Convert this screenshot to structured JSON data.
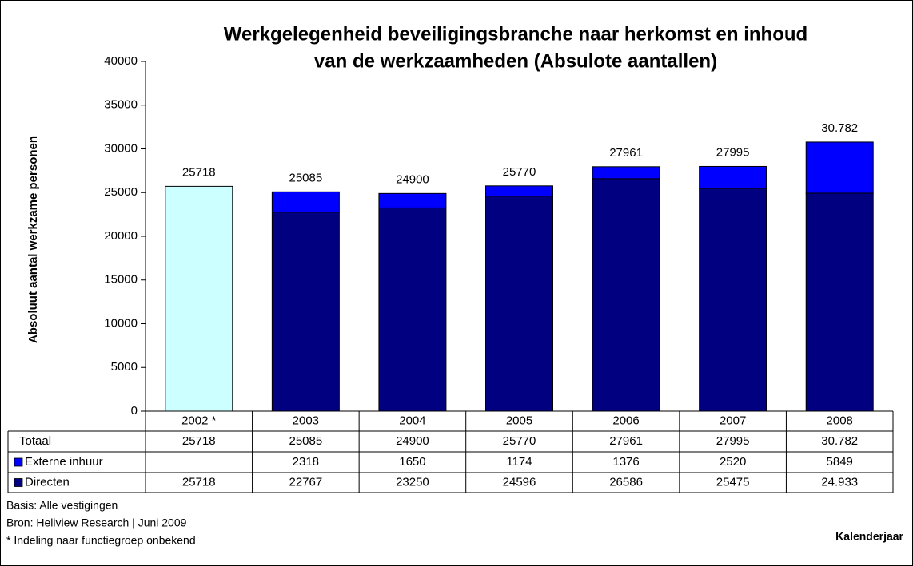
{
  "chart_data": {
    "type": "stacked_bar",
    "title": [
      "Werkgelegenheid beveiligingsbranche naar herkomst en inhoud",
      "van de werkzaamheden (Absulote aantallen)"
    ],
    "y_label": "Absoluut aantal werkzame personen",
    "x_label": "Kalenderjaar",
    "categories": [
      "2002 *",
      "2003",
      "2004",
      "2005",
      "2006",
      "2007",
      "2008"
    ],
    "series": [
      {
        "name": "Externe inhuur",
        "color": "#0000ff",
        "values": [
          null,
          2318,
          1650,
          1174,
          1376,
          2520,
          5849
        ]
      },
      {
        "name": "Directen",
        "color": "#000080",
        "point_colors": [
          "#ccffff",
          "#000080",
          "#000080",
          "#000080",
          "#000080",
          "#000080",
          "#000080"
        ],
        "values": [
          25718,
          22767,
          23250,
          24596,
          26586,
          25475,
          24933
        ],
        "value_labels": {
          "6": "24.933"
        }
      }
    ],
    "totals": {
      "name": "Totaal",
      "values": [
        25718,
        25085,
        24900,
        25770,
        27961,
        27995,
        30782
      ],
      "value_labels": {
        "6": "30.782"
      }
    },
    "ylim": [
      0,
      40000
    ],
    "yticks": [
      0,
      5000,
      10000,
      15000,
      20000,
      25000,
      30000,
      35000,
      40000
    ],
    "grid": false,
    "notes": [
      "Basis: Alle vestigingen",
      "Bron: Heliview Research | Juni 2009",
      "* Indeling naar functiegroep onbekend"
    ]
  }
}
